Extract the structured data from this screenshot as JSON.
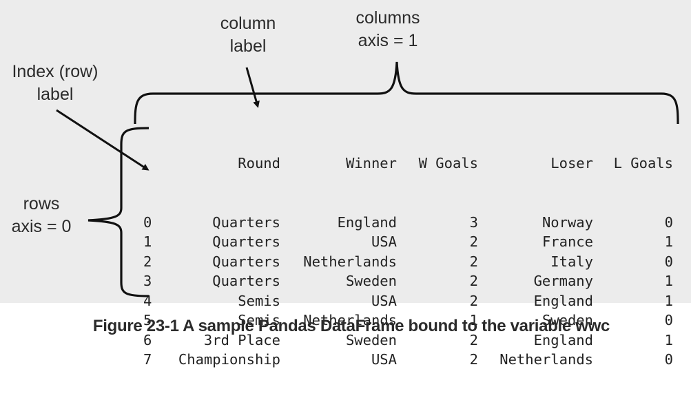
{
  "annotations": {
    "column_label": [
      "column",
      "label"
    ],
    "columns_axis": [
      "columns",
      "axis = 1"
    ],
    "index_label": [
      "Index (row)",
      "label"
    ],
    "rows_axis": [
      "rows",
      "axis = 0"
    ]
  },
  "dataframe": {
    "headers": [
      "",
      "Round",
      "Winner",
      "W Goals",
      "Loser",
      "L Goals"
    ],
    "rows": [
      [
        "0",
        "Quarters",
        "England",
        "3",
        "Norway",
        "0"
      ],
      [
        "1",
        "Quarters",
        "USA",
        "2",
        "France",
        "1"
      ],
      [
        "2",
        "Quarters",
        "Netherlands",
        "2",
        "Italy",
        "0"
      ],
      [
        "3",
        "Quarters",
        "Sweden",
        "2",
        "Germany",
        "1"
      ],
      [
        "4",
        "Semis",
        "USA",
        "2",
        "England",
        "1"
      ],
      [
        "5",
        "Semis",
        "Netherlands",
        "1",
        "Sweden",
        "0"
      ],
      [
        "6",
        "3rd Place",
        "Sweden",
        "2",
        "England",
        "1"
      ],
      [
        "7",
        "Championship",
        "USA",
        "2",
        "Netherlands",
        "0"
      ]
    ]
  },
  "caption": "Figure 23-1 A sample Pandas DataFrame bound to the variable wwc"
}
